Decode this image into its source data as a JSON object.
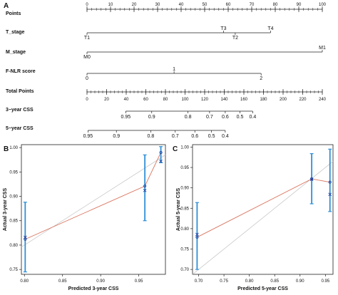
{
  "colors": {
    "ideal": "#c8c8c8",
    "model": "#d9735c",
    "bar": "#2f8fd6",
    "point": "#1f3f9f",
    "axis": "#222222"
  },
  "chart_data": [
    {
      "panel": "A",
      "type": "nomogram",
      "rows": [
        {
          "name": "Points",
          "min": 0,
          "max": 100,
          "ticks": [
            0,
            10,
            20,
            30,
            40,
            50,
            60,
            70,
            80,
            90,
            100
          ],
          "labels": [
            "0",
            "10",
            "20",
            "30",
            "40",
            "50",
            "60",
            "70",
            "80",
            "90",
            "100"
          ]
        },
        {
          "name": "T_stage",
          "items": [
            {
              "label": "T1",
              "value": 0,
              "side": "below"
            },
            {
              "label": "T3",
              "value": 58,
              "side": "above"
            },
            {
              "label": "T2",
              "value": 63,
              "side": "below"
            },
            {
              "label": "T4",
              "value": 78,
              "side": "above"
            }
          ]
        },
        {
          "name": "M_stage",
          "items": [
            {
              "label": "M0",
              "value": 0,
              "side": "below"
            },
            {
              "label": "M1",
              "value": 100,
              "side": "above"
            }
          ]
        },
        {
          "name": "F-NLR score",
          "items": [
            {
              "label": "0",
              "value": 0,
              "side": "below"
            },
            {
              "label": "1",
              "value": 37,
              "side": "above"
            },
            {
              "label": "2",
              "value": 74,
              "side": "below"
            }
          ]
        },
        {
          "name": "Total Points",
          "min": 0,
          "max": 240,
          "ticks": [
            0,
            20,
            40,
            60,
            80,
            100,
            120,
            140,
            160,
            180,
            200,
            220,
            240
          ],
          "labels": [
            "0",
            "20",
            "40",
            "60",
            "80",
            "100",
            "120",
            "140",
            "160",
            "180",
            "200",
            "220",
            "240"
          ]
        },
        {
          "name": "3−year CSS",
          "items": [
            {
              "label": "0.95",
              "value": 39.5
            },
            {
              "label": "0.9",
              "value": 66
            },
            {
              "label": "0.8",
              "value": 103
            },
            {
              "label": "0.7",
              "value": 125
            },
            {
              "label": "0.6",
              "value": 141
            },
            {
              "label": "0.5",
              "value": 156
            },
            {
              "label": "0.4",
              "value": 169
            }
          ]
        },
        {
          "name": "5−year CSS",
          "items": [
            {
              "label": "0.95",
              "value": 1
            },
            {
              "label": "0.9",
              "value": 30
            },
            {
              "label": "0.8",
              "value": 65
            },
            {
              "label": "0.7",
              "value": 90
            },
            {
              "label": "0.6",
              "value": 110
            },
            {
              "label": "0.5",
              "value": 127
            },
            {
              "label": "0.4",
              "value": 141
            }
          ]
        }
      ]
    },
    {
      "panel": "B",
      "type": "calibration",
      "xlabel": "Predicted  3-year CSS",
      "ylabel": "Actual 3-year CSS",
      "xlim": [
        0.796,
        0.985
      ],
      "ylim": [
        0.74,
        1.006
      ],
      "xticks": [
        0.8,
        0.85,
        0.9,
        0.95
      ],
      "xtick_labels": [
        "0.80",
        "0.85",
        "0.90",
        "0.95"
      ],
      "yticks": [
        0.75,
        0.8,
        0.85,
        0.9,
        0.95,
        1.0
      ],
      "ytick_labels": [
        "0.75",
        "0.80",
        "0.85",
        "0.90",
        "0.95",
        "1.00"
      ],
      "points": [
        {
          "x": 0.801,
          "y": 0.812,
          "lo": 0.745,
          "hi": 0.888,
          "corrected": 0.816
        },
        {
          "x": 0.958,
          "y": 0.921,
          "lo": 0.85,
          "hi": 0.985,
          "corrected": 0.912
        },
        {
          "x": 0.979,
          "y": 0.99,
          "lo": 0.969,
          "hi": 1.002,
          "corrected": 0.972
        }
      ]
    },
    {
      "panel": "C",
      "type": "calibration",
      "xlabel": "Predicted  5-year CSS",
      "ylabel": "Actual 5-year CSS",
      "xlim": [
        0.688,
        0.965
      ],
      "ylim": [
        0.688,
        1.006
      ],
      "xticks": [
        0.7,
        0.75,
        0.8,
        0.85,
        0.9,
        0.95
      ],
      "xtick_labels": [
        "0.70",
        "0.75",
        "0.80",
        "0.85",
        "0.90",
        "0.95"
      ],
      "yticks": [
        0.7,
        0.75,
        0.8,
        0.85,
        0.9,
        0.95,
        1.0
      ],
      "ytick_labels": [
        "0.70",
        "0.75",
        "0.80",
        "0.85",
        "0.90",
        "0.95",
        "1.00"
      ],
      "points": [
        {
          "x": 0.697,
          "y": 0.779,
          "lo": 0.7,
          "hi": 0.864,
          "corrected": 0.786
        },
        {
          "x": 0.923,
          "y": 0.922,
          "lo": 0.861,
          "hi": 0.984,
          "corrected": 0.921
        },
        {
          "x": 0.959,
          "y": 0.914,
          "lo": 0.842,
          "hi": 0.995,
          "corrected": 0.884
        }
      ]
    }
  ]
}
